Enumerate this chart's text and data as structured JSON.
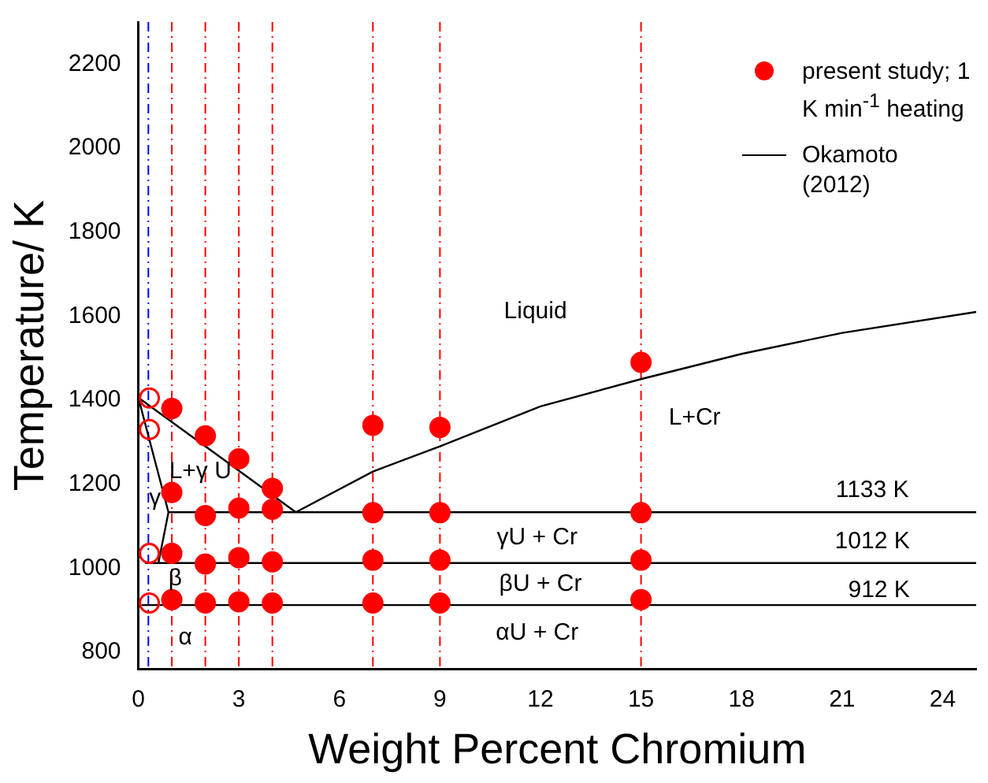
{
  "chart_data": {
    "type": "scatter",
    "xlabel": "Weight Percent Chromium",
    "ylabel": "Temperature/ K",
    "xlim": [
      0,
      25
    ],
    "xticks": [
      0,
      3,
      6,
      9,
      12,
      15,
      18,
      21,
      24
    ],
    "ylim": [
      760,
      2300
    ],
    "yticks": [
      800,
      1000,
      1200,
      1400,
      1600,
      1800,
      2000,
      2200
    ],
    "grid": false,
    "legend": "top right",
    "marker": "circle",
    "series": [
      {
        "name": "present study; 1 K min$^{-1}$ heating",
        "type": "scatter",
        "color": "#ff0000",
        "x": [
          1,
          1,
          1,
          1,
          2,
          2,
          2,
          2,
          3,
          3,
          3,
          3,
          4,
          4,
          4,
          4,
          7,
          7,
          7,
          7,
          9,
          9,
          9,
          9,
          15,
          15,
          15,
          15
        ],
        "values": [
          1380,
          1180,
          1035,
          925,
          1315,
          1125,
          1010,
          917,
          1260,
          1143,
          1025,
          920,
          1190,
          1140,
          1015,
          917,
          1340,
          1132,
          1019,
          917,
          1335,
          1132,
          1019,
          917,
          1490,
          1132,
          1019,
          925
        ]
      },
      {
        "type": "scatter",
        "color": "#ff0000",
        "x": [
          0.33,
          0.33,
          0.33,
          0.33
        ],
        "values": [
          1405,
          1330,
          1035,
          917
        ]
      },
      {
        "name": "Okamoto (2012)",
        "type": "line",
        "color": "#000000",
        "marker": "none",
        "x": [
          0,
          2,
          4.7,
          7,
          9,
          12,
          15,
          18,
          21,
          25,
          null,
          0,
          0.9,
          0.6,
          0.2,
          null,
          0.9,
          25,
          null,
          0.2,
          25,
          null,
          0.1,
          25
        ],
        "values": [
          1406,
          1290,
          1133,
          1230,
          1290,
          1385,
          1450,
          1510,
          1560,
          1610,
          null,
          1406,
          1133,
          1012,
          1012,
          null,
          1133,
          1133,
          null,
          1012,
          1012,
          null,
          912,
          912
        ]
      }
    ],
    "ref_lines": [
      {
        "axis": "x",
        "value": 0.3,
        "color": "#0000ff",
        "line_style": "dashed"
      },
      {
        "axis": "x",
        "value": 1,
        "color": "#ff0000",
        "line_style": "dashed"
      },
      {
        "axis": "x",
        "value": 2,
        "color": "#ff0000",
        "line_style": "dashed"
      },
      {
        "axis": "x",
        "value": 3,
        "color": "#ff0000",
        "line_style": "dashed"
      },
      {
        "axis": "x",
        "value": 4,
        "color": "#ff0000",
        "line_style": "dashed"
      },
      {
        "axis": "x",
        "value": 7,
        "color": "#ff0000",
        "line_style": "dashed"
      },
      {
        "axis": "x",
        "value": 9,
        "color": "#ff0000",
        "line_style": "dashed"
      },
      {
        "axis": "x",
        "value": 15,
        "color": "#ff0000",
        "line_style": "dashed"
      }
    ],
    "annotations": [
      "Liquid",
      "L+Cr",
      "1133 K",
      "1012 K",
      "912 K",
      "γU + Cr",
      "βU + Cr",
      "αU + Cr",
      {
        "text": "L+γ U",
        "x": 1.85,
        "y": 1230
      },
      {
        "text": "γ",
        "x": 0.5,
        "y": 1166
      },
      {
        "text": "β",
        "x": 1.1,
        "y": 974
      },
      "α"
    ]
  }
}
